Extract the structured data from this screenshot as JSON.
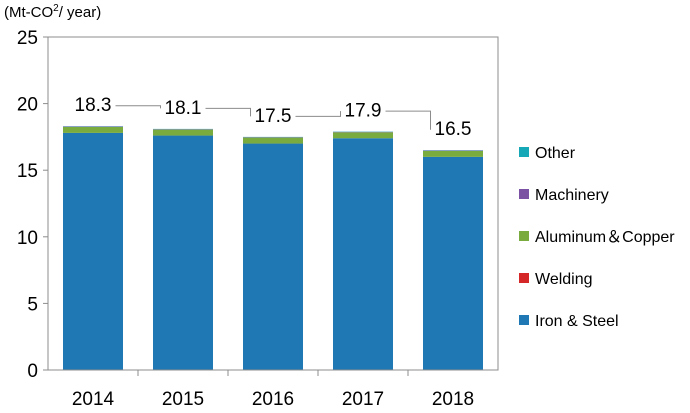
{
  "chart_data": {
    "type": "bar",
    "stacked": true,
    "unit_label": {
      "prefix": "(Mt-CO",
      "superscript": "2",
      "suffix": "/ year)"
    },
    "categories": [
      "2014",
      "2015",
      "2016",
      "2017",
      "2018"
    ],
    "series": [
      {
        "name": "Iron & Steel",
        "color": "#1f77b4",
        "values": [
          17.8,
          17.6,
          17.0,
          17.4,
          16.0
        ]
      },
      {
        "name": "Welding",
        "color": "#d62728",
        "values": [
          0.0,
          0.0,
          0.0,
          0.0,
          0.0
        ]
      },
      {
        "name": "Aluminum＆Copper",
        "color": "#7aab3e",
        "values": [
          0.45,
          0.45,
          0.45,
          0.45,
          0.45
        ]
      },
      {
        "name": "Machinery",
        "color": "#7b52a3",
        "values": [
          0.03,
          0.03,
          0.03,
          0.03,
          0.03
        ]
      },
      {
        "name": "Other",
        "color": "#17a8b8",
        "values": [
          0.02,
          0.02,
          0.02,
          0.02,
          0.02
        ]
      }
    ],
    "totals": [
      "18.3",
      "18.1",
      "17.5",
      "17.9",
      "16.5"
    ],
    "ylim": [
      0,
      25
    ],
    "yticks": [
      "0",
      "5",
      "10",
      "15",
      "20",
      "25"
    ],
    "grid": false,
    "legend_position": "right",
    "legend_order": [
      "Other",
      "Machinery",
      "Aluminum＆Copper",
      "Welding",
      "Iron & Steel"
    ]
  }
}
